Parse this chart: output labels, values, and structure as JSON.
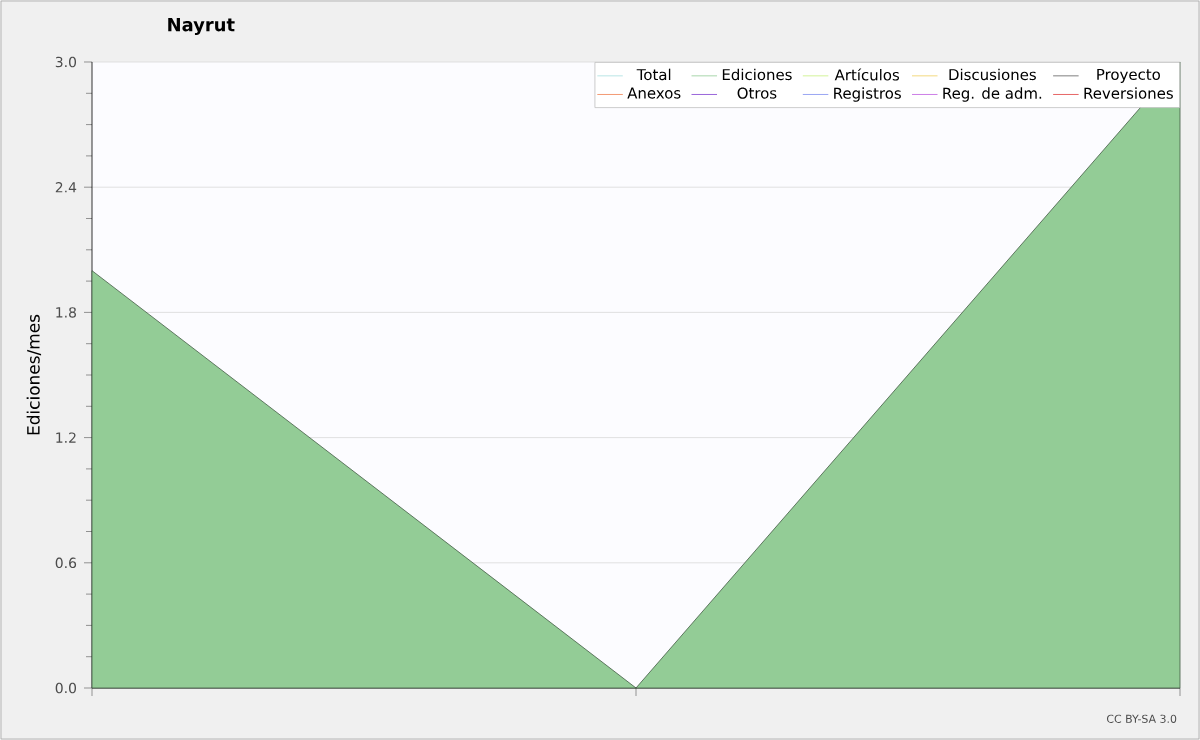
{
  "chart_data": {
    "type": "area",
    "title": "Nayrut",
    "ylabel": "Ediciones/mes",
    "annotations": [
      "CC BY-SA 3.0"
    ],
    "categories": [
      null,
      null,
      null
    ],
    "series": [
      {
        "name": "Total",
        "color": "#a8e0e0",
        "values": [
          null,
          null,
          null
        ]
      },
      {
        "name": "Ediciones",
        "color": "#93cc96",
        "values": [
          2,
          0,
          3
        ]
      },
      {
        "name": "Artículos",
        "color": "#c8f080",
        "values": [
          null,
          null,
          null
        ]
      },
      {
        "name": "Discusiones",
        "color": "#f0d060",
        "values": [
          null,
          null,
          null
        ]
      },
      {
        "name": "Proyecto",
        "color": "#606060",
        "values": [
          null,
          null,
          null
        ]
      },
      {
        "name": "Anexos",
        "color": "#f08050",
        "values": [
          null,
          null,
          null
        ]
      },
      {
        "name": "Otros",
        "color": "#8040d0",
        "values": [
          null,
          null,
          null
        ]
      },
      {
        "name": "Registros",
        "color": "#8090f0",
        "values": [
          null,
          null,
          null
        ]
      },
      {
        "name": "Reg. de adm.",
        "color": "#c060e0",
        "values": [
          null,
          null,
          null
        ]
      },
      {
        "name": "Reversiones",
        "color": "#e04040",
        "values": [
          null,
          null,
          null
        ]
      }
    ],
    "ylim": [
      0,
      3
    ],
    "yticks": [
      {
        "value": 0,
        "label": "0.0"
      },
      {
        "value": 0.6,
        "label": "0.6"
      },
      {
        "value": 1.2,
        "label": "1.2"
      },
      {
        "value": 1.8,
        "label": "1.8"
      },
      {
        "value": 2.4,
        "label": "2.4"
      },
      {
        "value": 3,
        "label": "3.0"
      }
    ],
    "grid": "y",
    "legend": "top right"
  }
}
